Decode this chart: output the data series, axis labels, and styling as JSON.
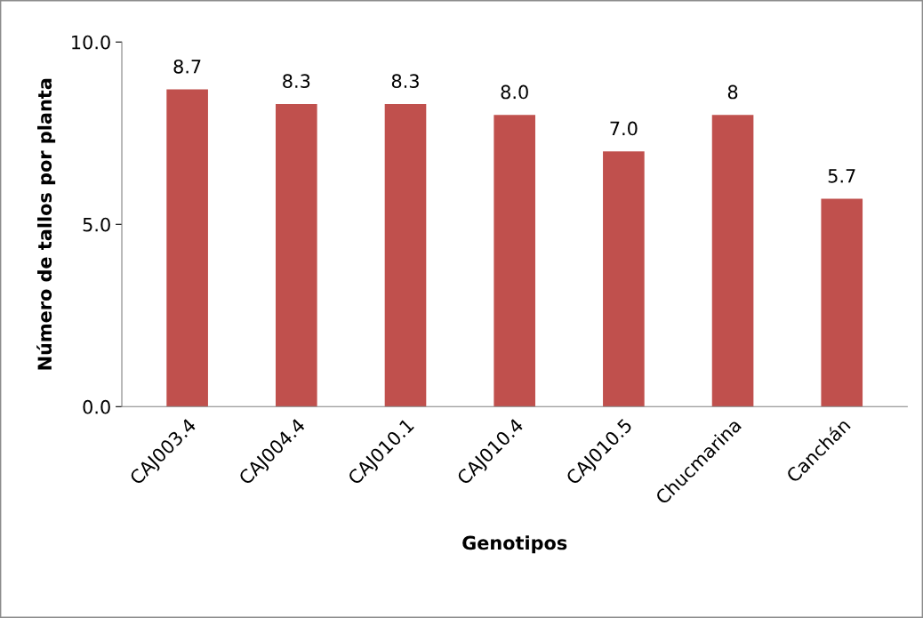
{
  "chart_data": {
    "type": "bar",
    "xlabel": "Genotipos",
    "ylabel": "Número de tallos por planta",
    "categories": [
      "CAJ003.4",
      "CAJ004.4",
      "CAJ010.1",
      "CAJ010.4",
      "CAJ010.5",
      "Chucmarina",
      "Canchán"
    ],
    "values": [
      8.7,
      8.3,
      8.3,
      8.0,
      7.0,
      8,
      5.7
    ],
    "value_labels": [
      "8.7",
      "8.3",
      "8.3",
      "8.0",
      "7.0",
      "8",
      "5.7"
    ],
    "color": "#c0504d",
    "ylim": [
      0,
      10
    ],
    "yticks": [
      {
        "value": 0,
        "label": "0.0"
      },
      {
        "value": 5,
        "label": "5.0"
      },
      {
        "value": 10,
        "label": "10.0"
      }
    ],
    "grid": false,
    "legend": false
  }
}
